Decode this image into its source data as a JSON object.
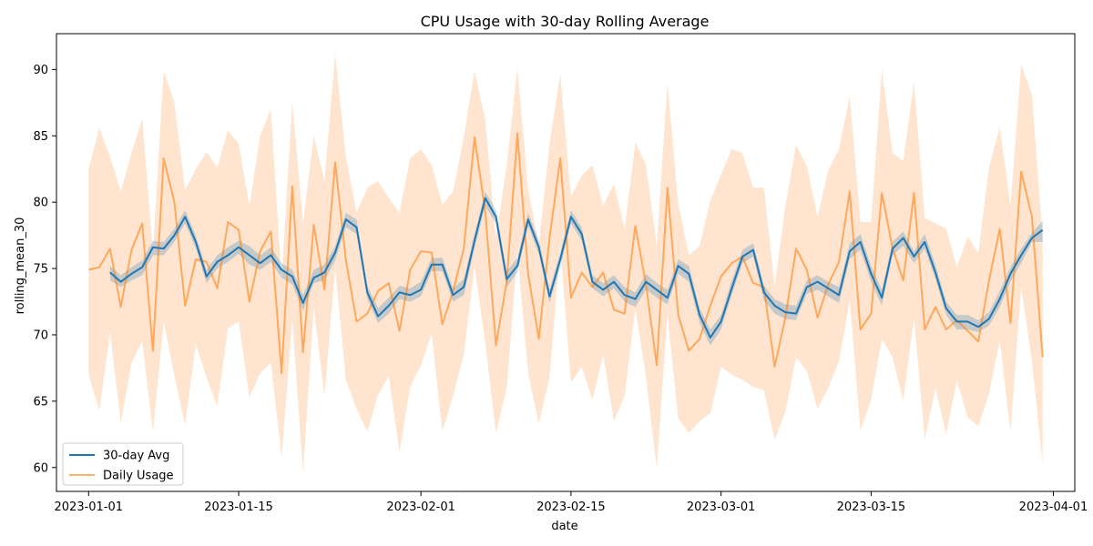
{
  "chart_data": {
    "type": "line",
    "title": "CPU Usage with 30-day Rolling Average",
    "xlabel": "date",
    "ylabel": "rolling_mean_30",
    "x_start": "2023-01-01",
    "x_end": "2023-03-31",
    "xlim": [
      "2022-12-29",
      "2023-04-03"
    ],
    "ylim": [
      58.2,
      92.7
    ],
    "x_ticks": [
      "2023-01-01",
      "2023-01-15",
      "2023-02-01",
      "2023-02-15",
      "2023-03-01",
      "2023-03-15",
      "2023-04-01"
    ],
    "y_ticks": [
      60,
      65,
      70,
      75,
      80,
      85,
      90
    ],
    "legend_position": "lower-left",
    "grid": false,
    "colors": {
      "avg": "#1f77b4",
      "daily": "#ff7f0e"
    },
    "series": [
      {
        "name": "30-day Avg",
        "start": "2023-01-03",
        "values": [
          74.7,
          74.0,
          74.6,
          75.1,
          76.6,
          76.5,
          77.5,
          78.9,
          77.0,
          74.4,
          75.5,
          76.0,
          76.6,
          76.0,
          75.4,
          76.0,
          74.9,
          74.4,
          72.4,
          74.3,
          74.7,
          76.2,
          78.7,
          78.1,
          73.2,
          71.4,
          72.2,
          73.2,
          73.0,
          73.4,
          75.3,
          75.3,
          73.0,
          73.6,
          77.1,
          80.3,
          78.9,
          74.2,
          75.2,
          78.7,
          76.6,
          72.9,
          75.7,
          78.9,
          77.6,
          74.0,
          73.4,
          74.0,
          73.0,
          72.7,
          74.0,
          73.4,
          72.8,
          75.2,
          74.6,
          71.5,
          69.8,
          71.0,
          73.5,
          75.9,
          76.4,
          73.2,
          72.2,
          71.7,
          71.6,
          73.6,
          74.0,
          73.5,
          73.0,
          76.3,
          77.0,
          74.6,
          72.8,
          76.5,
          77.3,
          75.9,
          77.0,
          74.7,
          72.0,
          71.0,
          71.0,
          70.6,
          71.2,
          72.7,
          74.6,
          76.0,
          77.3,
          77.9
        ],
        "ci_lower": [
          74.1,
          73.6,
          74.1,
          74.5,
          76.0,
          76.0,
          77.0,
          78.4,
          76.5,
          73.9,
          75.0,
          75.5,
          76.1,
          75.3,
          74.9,
          75.5,
          74.3,
          73.8,
          71.8,
          73.9,
          74.1,
          75.6,
          78.1,
          77.6,
          72.7,
          70.9,
          71.6,
          72.7,
          72.5,
          72.9,
          74.8,
          74.8,
          72.5,
          73.0,
          76.5,
          79.7,
          78.4,
          73.6,
          74.7,
          78.2,
          76.1,
          72.4,
          75.1,
          78.4,
          77.1,
          73.5,
          72.9,
          73.5,
          72.5,
          72.1,
          73.4,
          72.8,
          72.3,
          74.6,
          74.0,
          70.9,
          69.2,
          70.4,
          73.0,
          75.4,
          75.9,
          72.6,
          71.6,
          71.2,
          71.1,
          73.1,
          73.4,
          72.9,
          72.4,
          75.7,
          76.4,
          74.0,
          72.2,
          76.0,
          76.7,
          75.4,
          76.5,
          74.2,
          71.5,
          70.4,
          70.4,
          70.2,
          70.7,
          72.1,
          74.0,
          75.4,
          77.0,
          77.0
        ],
        "ci_upper": [
          75.2,
          74.5,
          75.1,
          75.6,
          77.1,
          77.0,
          78.0,
          79.4,
          77.5,
          74.9,
          76.0,
          76.6,
          77.1,
          76.7,
          76.0,
          76.6,
          75.4,
          74.9,
          73.0,
          74.9,
          75.3,
          76.7,
          79.2,
          78.7,
          73.7,
          72.0,
          72.8,
          73.7,
          73.5,
          74.0,
          75.8,
          75.8,
          73.5,
          74.2,
          77.6,
          80.8,
          79.4,
          74.8,
          75.8,
          79.2,
          77.1,
          73.4,
          76.2,
          79.4,
          78.1,
          74.5,
          73.9,
          74.5,
          73.6,
          73.2,
          74.6,
          73.9,
          73.4,
          75.7,
          75.2,
          72.0,
          70.4,
          71.5,
          74.1,
          76.4,
          76.9,
          73.7,
          72.7,
          72.3,
          72.2,
          74.1,
          74.5,
          74.0,
          73.6,
          76.9,
          77.6,
          75.2,
          73.4,
          77.0,
          77.8,
          76.3,
          77.6,
          75.3,
          72.5,
          71.5,
          71.5,
          71.1,
          71.7,
          73.3,
          75.1,
          76.5,
          77.7,
          78.6
        ]
      },
      {
        "name": "Daily Usage",
        "start": "2023-01-01",
        "values": [
          74.9,
          75.1,
          76.5,
          72.1,
          76.4,
          78.4,
          68.8,
          83.3,
          80.0,
          72.2,
          75.7,
          75.5,
          73.5,
          78.5,
          77.9,
          72.5,
          76.3,
          77.8,
          67.1,
          81.2,
          68.7,
          78.3,
          73.4,
          83.0,
          75.6,
          71.0,
          71.6,
          73.3,
          73.9,
          70.3,
          74.9,
          76.3,
          76.2,
          70.8,
          73.3,
          76.5,
          84.9,
          79.3,
          69.2,
          74.0,
          85.2,
          74.6,
          69.7,
          77.3,
          83.3,
          72.8,
          74.7,
          73.6,
          74.7,
          71.9,
          71.6,
          78.2,
          73.8,
          67.7,
          81.1,
          71.5,
          68.8,
          69.7,
          72.2,
          74.4,
          75.4,
          75.9,
          73.9,
          73.6,
          67.6,
          71.3,
          76.5,
          74.9,
          71.3,
          73.8,
          75.5,
          80.8,
          70.4,
          71.6,
          80.7,
          76.5,
          74.1,
          80.7,
          70.4,
          72.1,
          70.4,
          71.1,
          70.3,
          69.5,
          74.1,
          78.0,
          70.9,
          82.3,
          78.9,
          68.3
        ],
        "ci_lower": [
          67.0,
          64.3,
          70.2,
          63.3,
          67.9,
          69.5,
          62.7,
          71.0,
          66.9,
          63.2,
          69.3,
          66.8,
          64.6,
          70.5,
          71.0,
          65.3,
          67.1,
          67.9,
          60.8,
          71.1,
          59.6,
          72.0,
          65.4,
          75.0,
          66.6,
          64.4,
          62.7,
          65.5,
          66.9,
          61.2,
          66.1,
          67.7,
          70.1,
          62.7,
          65.4,
          68.5,
          75.2,
          69.4,
          62.6,
          66.0,
          76.3,
          67.1,
          63.3,
          66.8,
          76.6,
          66.4,
          67.6,
          65.1,
          68.5,
          63.5,
          65.4,
          72.0,
          66.8,
          59.9,
          71.5,
          63.7,
          62.6,
          63.5,
          64.1,
          67.6,
          67.0,
          66.6,
          66.1,
          65.8,
          62.1,
          64.2,
          68.3,
          67.3,
          64.4,
          66.0,
          68.0,
          72.6,
          62.8,
          65.1,
          69.7,
          68.3,
          65.0,
          71.3,
          62.1,
          66.0,
          62.5,
          66.6,
          63.8,
          63.1,
          65.6,
          69.6,
          62.7,
          73.6,
          68.0,
          60.3
        ],
        "ci_upper": [
          82.5,
          85.6,
          83.4,
          80.8,
          83.7,
          86.3,
          76.2,
          89.9,
          87.5,
          80.9,
          82.5,
          83.8,
          82.6,
          85.4,
          84.4,
          79.7,
          85.0,
          87.0,
          74.1,
          87.6,
          78.4,
          85.0,
          81.6,
          91.2,
          83.4,
          79.2,
          81.1,
          81.6,
          80.3,
          79.2,
          83.3,
          84.0,
          82.8,
          79.8,
          80.8,
          84.9,
          89.9,
          86.2,
          77.3,
          82.7,
          90.1,
          81.0,
          76.8,
          84.4,
          89.7,
          80.4,
          82.0,
          82.8,
          79.7,
          81.4,
          78.0,
          84.5,
          82.8,
          76.7,
          89.0,
          79.9,
          76.0,
          76.7,
          80.1,
          82.1,
          84.0,
          83.7,
          81.1,
          81.1,
          73.6,
          79.7,
          84.3,
          82.7,
          78.9,
          82.4,
          84.0,
          88.0,
          78.5,
          78.5,
          90.0,
          83.7,
          83.1,
          89.1,
          78.8,
          78.4,
          78.0,
          75.1,
          77.4,
          76.2,
          82.6,
          85.7,
          79.7,
          90.4,
          88.1,
          77.3
        ]
      }
    ]
  }
}
